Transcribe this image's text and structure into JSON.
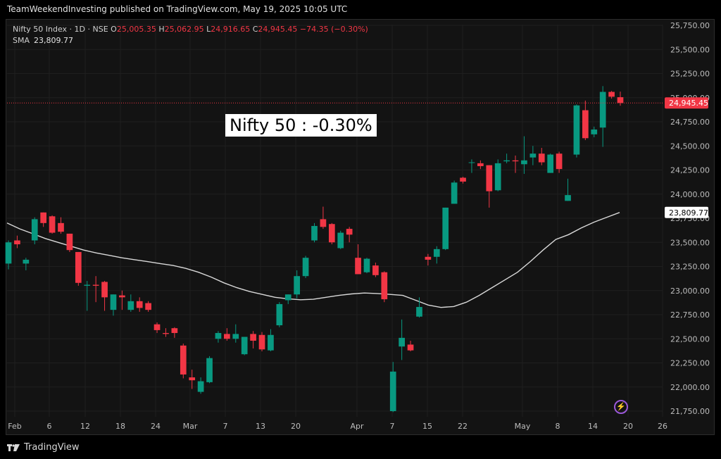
{
  "header": {
    "published": "TeamWeekendInvesting published on TradingView.com, May 19, 2025 10:05 UTC"
  },
  "legend": {
    "symbol": "Nifty 50 Index · 1D · NSE",
    "open_label": "O",
    "open": "25,005.35",
    "high_label": "H",
    "high": "25,062.95",
    "low_label": "L",
    "low": "24,916.65",
    "close_label": "C",
    "close": "24,945.45",
    "change": "−74.35 (−0.30%)",
    "sma_label": "SMA",
    "sma_value": "23,809.77"
  },
  "annotation": "Nifty 50 : -0.30%",
  "footer": {
    "brand": "TradingView",
    "icon": "tradingview-logo-icon"
  },
  "colors": {
    "up": "#089981",
    "down": "#f23645",
    "sma": "#d9d9d9",
    "background": "#131313",
    "grid": "#1f1f1f"
  },
  "chart_data": {
    "type": "candlestick",
    "title": "",
    "ylim": [
      21700,
      25800
    ],
    "y_ticks": [
      "25,750.00",
      "25,500.00",
      "25,250.00",
      "25,000.00",
      "24,750.00",
      "24,500.00",
      "24,250.00",
      "24,000.00",
      "23,750.00",
      "23,500.00",
      "23,250.00",
      "23,000.00",
      "22,750.00",
      "22,500.00",
      "22,250.00",
      "22,000.00",
      "21,750.00"
    ],
    "x_ticks": [
      "Feb",
      "6",
      "12",
      "18",
      "24",
      "Mar",
      "7",
      "13",
      "20",
      "Apr",
      "7",
      "15",
      "22",
      "May",
      "8",
      "14",
      "20",
      "26"
    ],
    "price_labels": {
      "last": "24,945.45",
      "sma": "23,809.77"
    },
    "candles": [
      {
        "o": 23280,
        "h": 23520,
        "l": 23220,
        "c": 23500
      },
      {
        "o": 23520,
        "h": 23570,
        "l": 23440,
        "c": 23480
      },
      {
        "o": 23280,
        "h": 23340,
        "l": 23210,
        "c": 23320
      },
      {
        "o": 23520,
        "h": 23760,
        "l": 23480,
        "c": 23740
      },
      {
        "o": 23810,
        "h": 23810,
        "l": 23660,
        "c": 23700
      },
      {
        "o": 23770,
        "h": 23780,
        "l": 23590,
        "c": 23600
      },
      {
        "o": 23700,
        "h": 23760,
        "l": 23590,
        "c": 23610
      },
      {
        "o": 23590,
        "h": 23590,
        "l": 23400,
        "c": 23420
      },
      {
        "o": 23400,
        "h": 23400,
        "l": 23050,
        "c": 23080
      },
      {
        "o": 23050,
        "h": 23100,
        "l": 22790,
        "c": 23060
      },
      {
        "o": 23060,
        "h": 23150,
        "l": 22880,
        "c": 23050
      },
      {
        "o": 23090,
        "h": 23100,
        "l": 22790,
        "c": 22930
      },
      {
        "o": 22800,
        "h": 22960,
        "l": 22740,
        "c": 22960
      },
      {
        "o": 22950,
        "h": 23000,
        "l": 22800,
        "c": 22930
      },
      {
        "o": 22800,
        "h": 22960,
        "l": 22780,
        "c": 22890
      },
      {
        "o": 22890,
        "h": 22930,
        "l": 22780,
        "c": 22820
      },
      {
        "o": 22870,
        "h": 22890,
        "l": 22780,
        "c": 22800
      },
      {
        "o": 22650,
        "h": 22670,
        "l": 22560,
        "c": 22590
      },
      {
        "o": 22560,
        "h": 22610,
        "l": 22520,
        "c": 22550
      },
      {
        "o": 22610,
        "h": 22620,
        "l": 22510,
        "c": 22560
      },
      {
        "o": 22430,
        "h": 22450,
        "l": 22090,
        "c": 22130
      },
      {
        "o": 22100,
        "h": 22180,
        "l": 21980,
        "c": 22070
      },
      {
        "o": 21950,
        "h": 22100,
        "l": 21930,
        "c": 22060
      },
      {
        "o": 22050,
        "h": 22320,
        "l": 22040,
        "c": 22300
      },
      {
        "o": 22500,
        "h": 22580,
        "l": 22460,
        "c": 22560
      },
      {
        "o": 22550,
        "h": 22610,
        "l": 22480,
        "c": 22500
      },
      {
        "o": 22500,
        "h": 22650,
        "l": 22460,
        "c": 22550
      },
      {
        "o": 22340,
        "h": 22520,
        "l": 22330,
        "c": 22520
      },
      {
        "o": 22550,
        "h": 22580,
        "l": 22400,
        "c": 22480
      },
      {
        "o": 22540,
        "h": 22570,
        "l": 22370,
        "c": 22390
      },
      {
        "o": 22380,
        "h": 22600,
        "l": 22370,
        "c": 22540
      },
      {
        "o": 22640,
        "h": 22880,
        "l": 22620,
        "c": 22860
      },
      {
        "o": 22900,
        "h": 22960,
        "l": 22860,
        "c": 22960
      },
      {
        "o": 22960,
        "h": 23210,
        "l": 22920,
        "c": 23150
      },
      {
        "o": 23150,
        "h": 23360,
        "l": 23130,
        "c": 23340
      },
      {
        "o": 23520,
        "h": 23700,
        "l": 23500,
        "c": 23670
      },
      {
        "o": 23740,
        "h": 23870,
        "l": 23640,
        "c": 23660
      },
      {
        "o": 23690,
        "h": 23700,
        "l": 23480,
        "c": 23500
      },
      {
        "o": 23440,
        "h": 23620,
        "l": 23430,
        "c": 23600
      },
      {
        "o": 23640,
        "h": 23660,
        "l": 23500,
        "c": 23580
      },
      {
        "o": 23340,
        "h": 23480,
        "l": 23170,
        "c": 23170
      },
      {
        "o": 23190,
        "h": 23340,
        "l": 23180,
        "c": 23330
      },
      {
        "o": 23260,
        "h": 23290,
        "l": 23140,
        "c": 23160
      },
      {
        "o": 23190,
        "h": 23200,
        "l": 22880,
        "c": 22910
      },
      {
        "o": 21750,
        "h": 22260,
        "l": 21740,
        "c": 22160
      },
      {
        "o": 22420,
        "h": 22700,
        "l": 22280,
        "c": 22510
      },
      {
        "o": 22440,
        "h": 22480,
        "l": 22370,
        "c": 22380
      },
      {
        "o": 22730,
        "h": 22930,
        "l": 22720,
        "c": 22830
      },
      {
        "o": 23350,
        "h": 23380,
        "l": 23260,
        "c": 23320
      },
      {
        "o": 23350,
        "h": 23460,
        "l": 23280,
        "c": 23430
      },
      {
        "o": 23430,
        "h": 23860,
        "l": 23420,
        "c": 23860
      },
      {
        "o": 23900,
        "h": 24140,
        "l": 23900,
        "c": 24120
      },
      {
        "o": 24170,
        "h": 24180,
        "l": 24110,
        "c": 24130
      },
      {
        "o": 24330,
        "h": 24360,
        "l": 24220,
        "c": 24330
      },
      {
        "o": 24320,
        "h": 24350,
        "l": 24260,
        "c": 24290
      },
      {
        "o": 24300,
        "h": 24300,
        "l": 23860,
        "c": 24030
      },
      {
        "o": 24040,
        "h": 24360,
        "l": 24030,
        "c": 24320
      },
      {
        "o": 24340,
        "h": 24420,
        "l": 24320,
        "c": 24350
      },
      {
        "o": 24350,
        "h": 24400,
        "l": 24220,
        "c": 24340
      },
      {
        "o": 24310,
        "h": 24600,
        "l": 24210,
        "c": 24350
      },
      {
        "o": 24380,
        "h": 24500,
        "l": 24300,
        "c": 24420
      },
      {
        "o": 24420,
        "h": 24480,
        "l": 24300,
        "c": 24330
      },
      {
        "o": 24220,
        "h": 24420,
        "l": 24220,
        "c": 24410
      },
      {
        "o": 24420,
        "h": 24440,
        "l": 24220,
        "c": 24260
      },
      {
        "o": 23930,
        "h": 24160,
        "l": 23930,
        "c": 23990
      },
      {
        "o": 24410,
        "h": 24930,
        "l": 24380,
        "c": 24920
      },
      {
        "o": 24870,
        "h": 24970,
        "l": 24560,
        "c": 24580
      },
      {
        "o": 24620,
        "h": 24700,
        "l": 24590,
        "c": 24670
      },
      {
        "o": 24690,
        "h": 25120,
        "l": 24490,
        "c": 25060
      },
      {
        "o": 25060,
        "h": 25070,
        "l": 24990,
        "c": 25010
      },
      {
        "o": 25005,
        "h": 25063,
        "l": 24917,
        "c": 24945
      }
    ],
    "sma": [
      23700,
      23640,
      23590,
      23540,
      23500,
      23460,
      23420,
      23390,
      23365,
      23340,
      23320,
      23300,
      23280,
      23260,
      23230,
      23190,
      23140,
      23080,
      23030,
      22990,
      22960,
      22930,
      22915,
      22905,
      22910,
      22930,
      22950,
      22965,
      22975,
      22970,
      22960,
      22950,
      22900,
      22850,
      22825,
      22835,
      22880,
      22950,
      23030,
      23110,
      23190,
      23300,
      23420,
      23530,
      23580,
      23650,
      23710,
      23760,
      23810
    ]
  }
}
